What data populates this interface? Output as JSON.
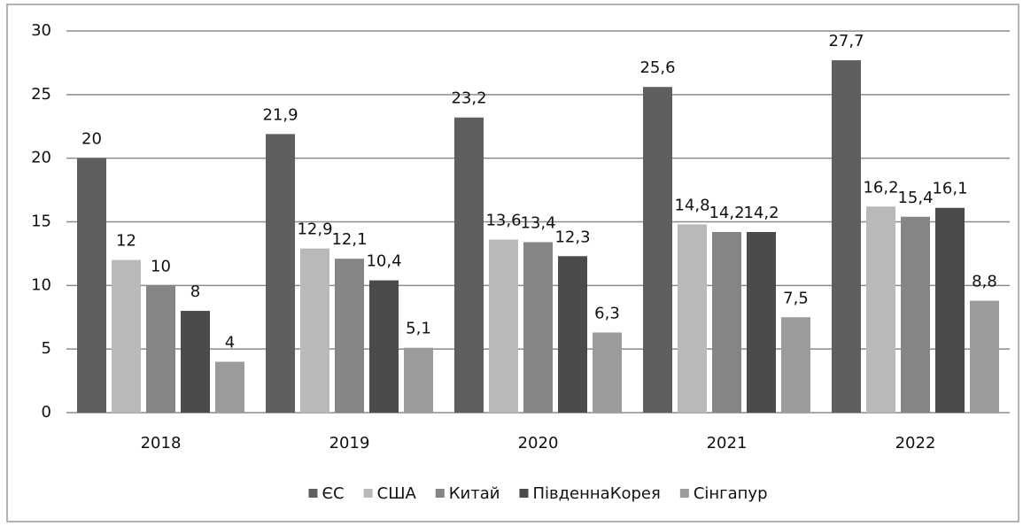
{
  "chart_data": {
    "type": "bar",
    "categories": [
      "2018",
      "2019",
      "2020",
      "2021",
      "2022"
    ],
    "series": [
      {
        "name": "ЄС",
        "color": "#5f5f5f",
        "values": [
          20,
          21.9,
          23.2,
          25.6,
          27.7
        ],
        "value_labels": [
          "20",
          "21,9",
          "23,2",
          "25,6",
          "27,7"
        ]
      },
      {
        "name": "США",
        "color": "#b9b9b9",
        "values": [
          12,
          12.9,
          13.6,
          14.8,
          16.2
        ],
        "value_labels": [
          "12",
          "12,9",
          "13,6",
          "14,8",
          "16,2"
        ]
      },
      {
        "name": "Китай",
        "color": "#858585",
        "values": [
          10,
          12.1,
          13.4,
          14.2,
          15.4
        ],
        "value_labels": [
          "10",
          "12,1",
          "13,4",
          "14,2",
          "15,4"
        ]
      },
      {
        "name": "ПівденнаКорея",
        "color": "#4b4b4b",
        "values": [
          8,
          10.4,
          12.3,
          14.2,
          16.1
        ],
        "value_labels": [
          "8",
          "10,4",
          "12,3",
          "14,2",
          "16,1"
        ]
      },
      {
        "name": "Сінгапур",
        "color": "#9b9b9b",
        "values": [
          4,
          5.1,
          6.3,
          7.5,
          8.8
        ],
        "value_labels": [
          "4",
          "5,1",
          "6,3",
          "7,5",
          "8,8"
        ]
      }
    ],
    "ylim": [
      0,
      30
    ],
    "yticks": [
      0,
      5,
      10,
      15,
      20,
      25,
      30
    ],
    "grid": true,
    "legend": "bottom"
  }
}
